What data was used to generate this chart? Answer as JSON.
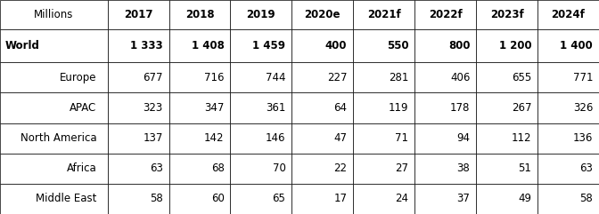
{
  "columns": [
    "Millions",
    "2017",
    "2018",
    "2019",
    "2020e",
    "2021f",
    "2022f",
    "2023f",
    "2024f"
  ],
  "rows": [
    {
      "label": "World",
      "values": [
        "1 333",
        "1 408",
        "1 459",
        "400",
        "550",
        "800",
        "1 200",
        "1 400"
      ],
      "bold": true
    },
    {
      "label": "Europe",
      "values": [
        "677",
        "716",
        "744",
        "227",
        "281",
        "406",
        "655",
        "771"
      ],
      "bold": false
    },
    {
      "label": "APAC",
      "values": [
        "323",
        "347",
        "361",
        "64",
        "119",
        "178",
        "267",
        "326"
      ],
      "bold": false
    },
    {
      "label": "North America",
      "values": [
        "137",
        "142",
        "146",
        "47",
        "71",
        "94",
        "112",
        "136"
      ],
      "bold": false
    },
    {
      "label": "Africa",
      "values": [
        "63",
        "68",
        "70",
        "22",
        "27",
        "38",
        "51",
        "63"
      ],
      "bold": false
    },
    {
      "label": "Middle East",
      "values": [
        "58",
        "60",
        "65",
        "17",
        "24",
        "37",
        "49",
        "58"
      ],
      "bold": false
    }
  ],
  "col_widths": [
    1.75,
    1.0,
    1.0,
    1.0,
    1.0,
    1.0,
    1.0,
    1.0,
    1.0
  ],
  "border_color": "#000000",
  "text_color": "#000000",
  "header_fontsize": 8.5,
  "data_fontsize": 8.5,
  "figsize": [
    6.72,
    2.41
  ],
  "dpi": 100
}
